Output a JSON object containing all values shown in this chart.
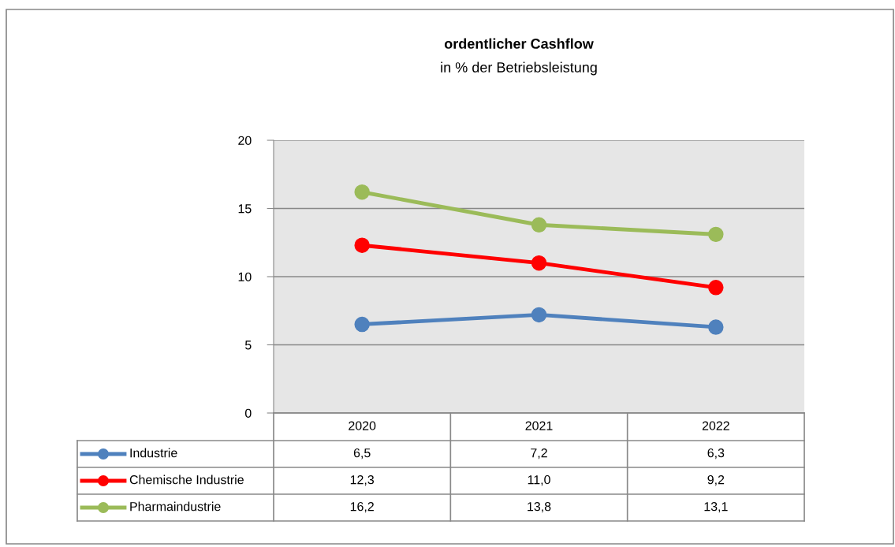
{
  "chart_data": {
    "type": "line",
    "title": "ordentlicher Cashflow",
    "subtitle": "in % der Betriebsleistung",
    "categories": [
      "2020",
      "2021",
      "2022"
    ],
    "series": [
      {
        "name": "Industrie",
        "color": "#4f81bd",
        "values": [
          6.5,
          7.2,
          6.3
        ],
        "value_labels": [
          "6,5",
          "7,2",
          "6,3"
        ]
      },
      {
        "name": "Chemische Industrie",
        "color": "#ff0000",
        "values": [
          12.3,
          11.0,
          9.2
        ],
        "value_labels": [
          "12,3",
          "11,0",
          "9,2"
        ]
      },
      {
        "name": "Pharmaindustrie",
        "color": "#9bbb59",
        "values": [
          16.2,
          13.8,
          13.1
        ],
        "value_labels": [
          "16,2",
          "13,8",
          "13,1"
        ]
      }
    ],
    "ylim": [
      0,
      20
    ],
    "yticks": [
      0,
      5,
      10,
      15,
      20
    ],
    "grid": "y",
    "legend": "bottom",
    "marker": "circle",
    "line_style": "solid"
  }
}
